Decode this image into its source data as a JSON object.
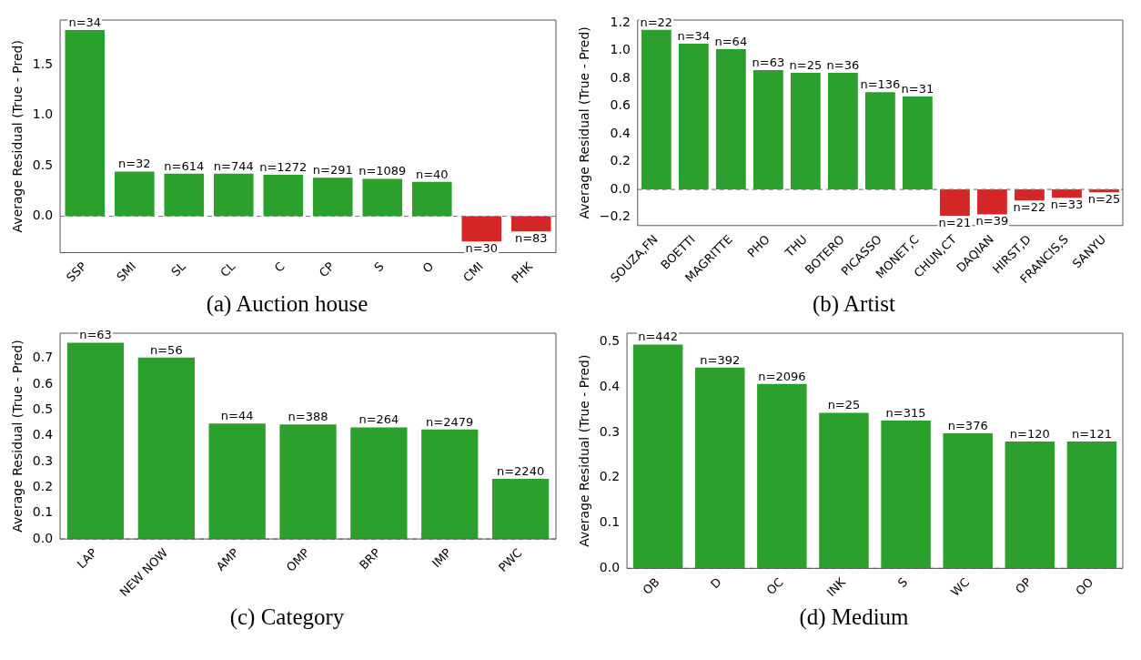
{
  "chart_data": [
    {
      "type": "bar",
      "title": "(a) Auction house",
      "ylabel": "Average Residual (True - Pred)",
      "categories": [
        "SSP",
        "SMI",
        "SL",
        "CL",
        "C",
        "CP",
        "S",
        "O",
        "CMI",
        "PHK"
      ],
      "values": [
        1.84,
        0.44,
        0.42,
        0.42,
        0.41,
        0.38,
        0.37,
        0.34,
        -0.25,
        -0.15
      ],
      "colors": [
        "#2ca02c",
        "#2ca02c",
        "#2ca02c",
        "#2ca02c",
        "#2ca02c",
        "#2ca02c",
        "#2ca02c",
        "#2ca02c",
        "#d62728",
        "#d62728"
      ],
      "annotations": [
        {
          "text": "n=34",
          "x": "SSP",
          "y": 1.84
        },
        {
          "text": "n=32",
          "x": "SMI",
          "y": 0.44
        },
        {
          "text": "n=614",
          "x": "SL",
          "y": 0.42
        },
        {
          "text": "n=744",
          "x": "CL",
          "y": 0.42
        },
        {
          "text": "n=1272",
          "x": "C",
          "y": 0.41
        },
        {
          "text": "n=291",
          "x": "CP",
          "y": 0.38
        },
        {
          "text": "n=1089",
          "x": "S",
          "y": 0.37
        },
        {
          "text": "n=40",
          "x": "O",
          "y": 0.34
        },
        {
          "text": "n=30",
          "x": "CMI",
          "y": -0.25
        },
        {
          "text": "n=83",
          "x": "PHK",
          "y": -0.15
        }
      ],
      "ylim": [
        -0.36,
        1.94
      ],
      "yticks": [
        {
          "value": 0,
          "label": "0.0"
        },
        0.5,
        {
          "value": 1,
          "label": "1.0"
        },
        1.5
      ],
      "ref_lines": [
        {
          "axis": "y",
          "value": 0,
          "color": "#808080",
          "line_style": "dashed"
        }
      ]
    },
    {
      "type": "bar",
      "title": "(b) Artist",
      "ylabel": "Average Residual (True - Pred)",
      "categories": [
        "SOUZA,FN",
        "BOETTI",
        "MAGRITTE",
        "PHO",
        "THU",
        "BOTERO",
        "PICASSO",
        "MONET,C",
        "CHUN,CT",
        "DAQIAN",
        "HIRST,D",
        "FRANCIS,S",
        "SANYU"
      ],
      "values": [
        1.15,
        1.05,
        1.01,
        0.86,
        0.84,
        0.84,
        0.7,
        0.67,
        -0.19,
        -0.18,
        -0.08,
        -0.06,
        -0.02
      ],
      "colors": [
        "#2ca02c",
        "#2ca02c",
        "#2ca02c",
        "#2ca02c",
        "#2ca02c",
        "#2ca02c",
        "#2ca02c",
        "#2ca02c",
        "#d62728",
        "#d62728",
        "#d62728",
        "#d62728",
        "#d62728"
      ],
      "annotations": [
        {
          "text": "n=22",
          "x": "SOUZA,FN",
          "y": 1.15
        },
        {
          "text": "n=34",
          "x": "BOETTI",
          "y": 1.05
        },
        {
          "text": "n=64",
          "x": "MAGRITTE",
          "y": 1.01
        },
        {
          "text": "n=63",
          "x": "PHO",
          "y": 0.86
        },
        {
          "text": "n=25",
          "x": "THU",
          "y": 0.84
        },
        {
          "text": "n=36",
          "x": "BOTERO",
          "y": 0.84
        },
        {
          "text": "n=136",
          "x": "PICASSO",
          "y": 0.7
        },
        {
          "text": "n=31",
          "x": "MONET,C",
          "y": 0.67
        },
        {
          "text": "n=21",
          "x": "CHUN,CT",
          "y": -0.19
        },
        {
          "text": "n=39",
          "x": "DAQIAN",
          "y": -0.18
        },
        {
          "text": "n=22",
          "x": "HIRST,D",
          "y": -0.08
        },
        {
          "text": "n=33",
          "x": "FRANCIS,S",
          "y": -0.06
        },
        {
          "text": "n=25",
          "x": "SANYU",
          "y": -0.02
        }
      ],
      "ylim": [
        -0.26,
        1.22
      ],
      "yticks": [
        {
          "value": -0.2,
          "label": "−0.2"
        },
        {
          "value": 0,
          "label": "0.0"
        },
        0.2,
        0.4,
        0.6,
        0.8,
        {
          "value": 1,
          "label": "1.0"
        },
        1.2
      ],
      "ref_lines": [
        {
          "axis": "y",
          "value": 0,
          "color": "#808080",
          "line_style": "dashed"
        }
      ]
    },
    {
      "type": "bar",
      "title": "(c) Category",
      "ylabel": "Average Residual (True - Pred)",
      "categories": [
        "LAP",
        "NEW NOW",
        "AMP",
        "OMP",
        "BRP",
        "IMP",
        "PWC"
      ],
      "values": [
        0.761,
        0.704,
        0.448,
        0.444,
        0.433,
        0.425,
        0.233
      ],
      "colors": [
        "#2ca02c",
        "#2ca02c",
        "#2ca02c",
        "#2ca02c",
        "#2ca02c",
        "#2ca02c",
        "#2ca02c"
      ],
      "annotations": [
        {
          "text": "n=63",
          "x": "LAP",
          "y": 0.761
        },
        {
          "text": "n=56",
          "x": "NEW NOW",
          "y": 0.704
        },
        {
          "text": "n=44",
          "x": "AMP",
          "y": 0.448
        },
        {
          "text": "n=388",
          "x": "OMP",
          "y": 0.444
        },
        {
          "text": "n=264",
          "x": "BRP",
          "y": 0.433
        },
        {
          "text": "n=2479",
          "x": "IMP",
          "y": 0.425
        },
        {
          "text": "n=2240",
          "x": "PWC",
          "y": 0.233
        }
      ],
      "ylim": [
        0,
        0.798
      ],
      "yticks": [
        {
          "value": 0,
          "label": "0.0"
        },
        0.1,
        0.2,
        0.3,
        0.4,
        0.5,
        0.6,
        0.7
      ],
      "ref_lines": [
        {
          "axis": "y",
          "value": 0,
          "color": "#808080",
          "line_style": "dashed"
        }
      ]
    },
    {
      "type": "bar",
      "title": "(d) Medium",
      "ylabel": "Average Residual (True - Pred)",
      "categories": [
        "OB",
        "D",
        "OC",
        "INK",
        "S",
        "WC",
        "OP",
        "OO"
      ],
      "values": [
        0.494,
        0.443,
        0.407,
        0.343,
        0.326,
        0.298,
        0.28,
        0.28
      ],
      "colors": [
        "#2ca02c",
        "#2ca02c",
        "#2ca02c",
        "#2ca02c",
        "#2ca02c",
        "#2ca02c",
        "#2ca02c",
        "#2ca02c"
      ],
      "annotations": [
        {
          "text": "n=442",
          "x": "OB",
          "y": 0.494
        },
        {
          "text": "n=392",
          "x": "D",
          "y": 0.443
        },
        {
          "text": "n=2096",
          "x": "OC",
          "y": 0.407
        },
        {
          "text": "n=25",
          "x": "INK",
          "y": 0.343
        },
        {
          "text": "n=315",
          "x": "S",
          "y": 0.326
        },
        {
          "text": "n=376",
          "x": "WC",
          "y": 0.298
        },
        {
          "text": "n=120",
          "x": "OP",
          "y": 0.28
        },
        {
          "text": "n=121",
          "x": "OO",
          "y": 0.28
        }
      ],
      "ylim": [
        0,
        0.519
      ],
      "yticks": [
        {
          "value": 0,
          "label": "0.0"
        },
        0.1,
        0.2,
        0.3,
        0.4,
        0.5
      ],
      "ref_lines": [
        {
          "axis": "y",
          "value": 0,
          "color": "#808080",
          "line_style": "dashed"
        }
      ]
    }
  ]
}
